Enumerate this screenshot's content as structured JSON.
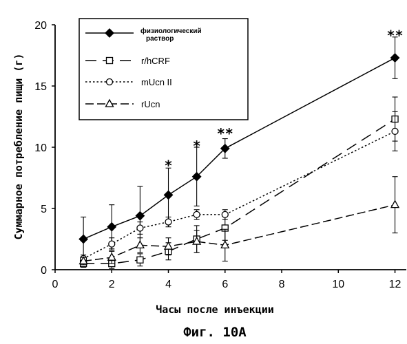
{
  "chart_data": {
    "type": "line",
    "title": "",
    "caption": "Фиг. 10А",
    "xlabel": "Часы после инъекции",
    "ylabel": "Суммарное потребление пищи (г)",
    "xlim": [
      0,
      12.4
    ],
    "ylim": [
      0,
      20
    ],
    "x_ticks": [
      0,
      2,
      4,
      6,
      8,
      10,
      12
    ],
    "y_ticks": [
      0,
      5,
      10,
      15,
      20
    ],
    "grid": false,
    "legend_position": "top-left",
    "series": [
      {
        "name": "физиологический раствор",
        "marker": "filled-diamond",
        "line_style": "solid",
        "x": [
          1,
          2,
          3,
          4,
          5,
          6,
          12
        ],
        "y": [
          2.5,
          3.5,
          4.4,
          6.1,
          7.6,
          9.9,
          17.3
        ],
        "error": [
          1.8,
          1.8,
          2.4,
          2.2,
          2.4,
          0.8,
          1.7
        ]
      },
      {
        "name": "r/hCRF",
        "marker": "open-square",
        "line_style": "long-dash",
        "x": [
          1,
          2,
          3,
          4,
          5,
          6,
          12
        ],
        "y": [
          0.5,
          0.5,
          0.8,
          1.5,
          2.5,
          3.4,
          12.3
        ],
        "error": [
          0.3,
          0.4,
          0.5,
          0.7,
          1.1,
          1.0,
          1.8
        ]
      },
      {
        "name": "mUcn II",
        "marker": "open-circle",
        "line_style": "dotted",
        "x": [
          1,
          2,
          3,
          4,
          5,
          6,
          12
        ],
        "y": [
          0.9,
          2.1,
          3.4,
          3.9,
          4.5,
          4.5,
          11.3
        ],
        "error": [
          0.3,
          0.5,
          0.5,
          0.4,
          0.4,
          0.4,
          1.6
        ]
      },
      {
        "name": "rUcn",
        "marker": "open-triangle",
        "line_style": "dash",
        "x": [
          1,
          2,
          3,
          4,
          5,
          6,
          12
        ],
        "y": [
          0.7,
          1.0,
          2.0,
          1.9,
          2.3,
          2.0,
          5.3
        ],
        "error": [
          0.3,
          0.5,
          0.6,
          0.7,
          0.9,
          1.3,
          2.3
        ]
      }
    ],
    "annotations": [
      {
        "text": "*",
        "x": 4,
        "y": 8.8
      },
      {
        "text": "*",
        "x": 5,
        "y": 10.4
      },
      {
        "text": "**",
        "x": 6,
        "y": 11.4
      },
      {
        "text": "**",
        "x": 12,
        "y": 19.4
      }
    ]
  }
}
